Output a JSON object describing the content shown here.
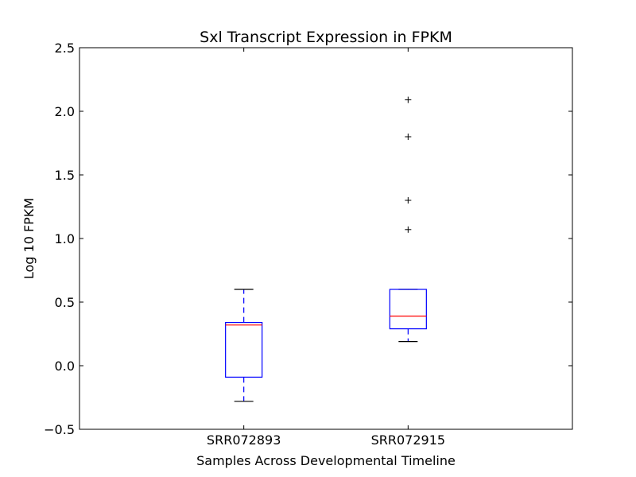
{
  "chart_data": {
    "type": "box",
    "title": "Sxl Transcript Expression in FPKM",
    "xlabel": "Samples Across Developmental Timeline",
    "ylabel": "Log 10 FPKM",
    "ylim": [
      -0.5,
      2.5
    ],
    "yticks": [
      "−0.5",
      "0.0",
      "0.5",
      "1.0",
      "1.5",
      "2.0",
      "2.5"
    ],
    "categories": [
      "SRR072893",
      "SRR072915"
    ],
    "boxes": [
      {
        "category": "SRR072893",
        "whisker_low": -0.28,
        "q1": -0.09,
        "median": 0.32,
        "q3": 0.34,
        "whisker_high": 0.6,
        "outliers": []
      },
      {
        "category": "SRR072915",
        "whisker_low": 0.19,
        "q1": 0.29,
        "median": 0.39,
        "q3": 0.6,
        "whisker_high": 0.6,
        "outliers": [
          1.07,
          1.3,
          1.8,
          2.09
        ]
      }
    ],
    "grid": false,
    "colors": {
      "box": "#0000ff",
      "median": "#ff0000",
      "caps": "#000000",
      "outlier": "#000000"
    }
  }
}
